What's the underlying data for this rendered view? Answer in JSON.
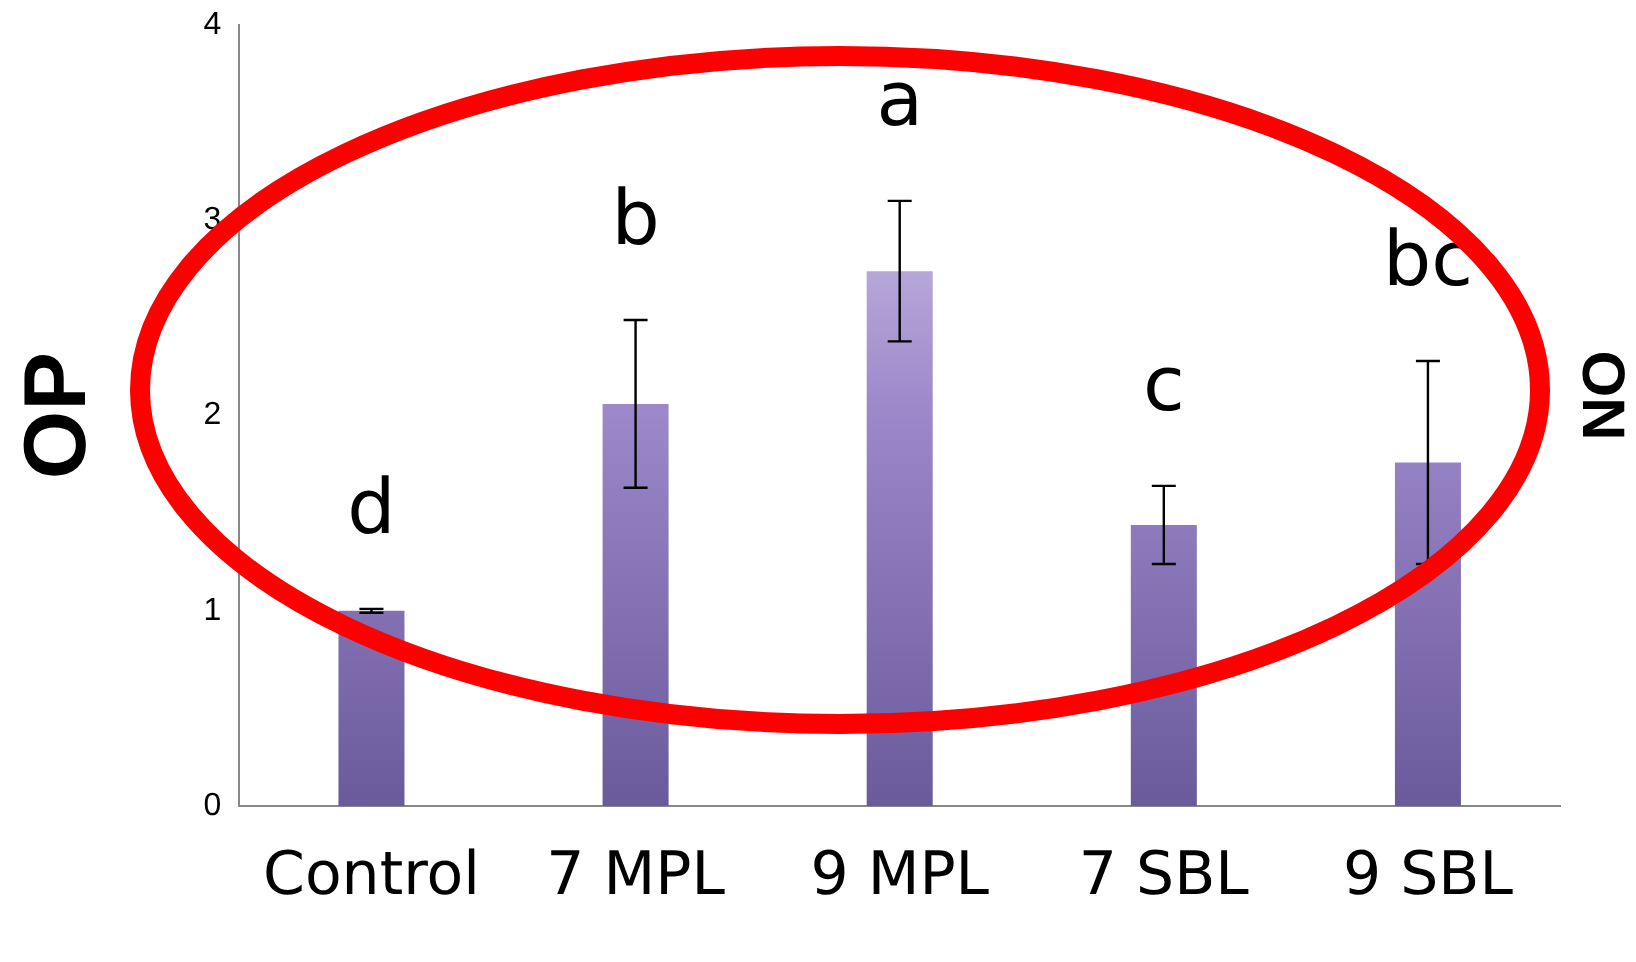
{
  "chart_data": {
    "type": "bar",
    "ylabel": "OP",
    "categories": [
      "Control",
      "7 MPL",
      "9 MPL",
      "7 SBL",
      "9 SBL"
    ],
    "values": [
      1.0,
      2.06,
      2.74,
      1.44,
      1.76
    ],
    "errors": [
      0.01,
      0.43,
      0.36,
      0.2,
      0.52
    ],
    "color": "#9b87c9",
    "ylim": [
      0,
      4
    ],
    "yticks": [
      0,
      1,
      2,
      3,
      4
    ],
    "grid": false,
    "legend": false,
    "annotations": [
      "d",
      "b",
      "a",
      "c",
      "bc",
      "ON"
    ]
  }
}
